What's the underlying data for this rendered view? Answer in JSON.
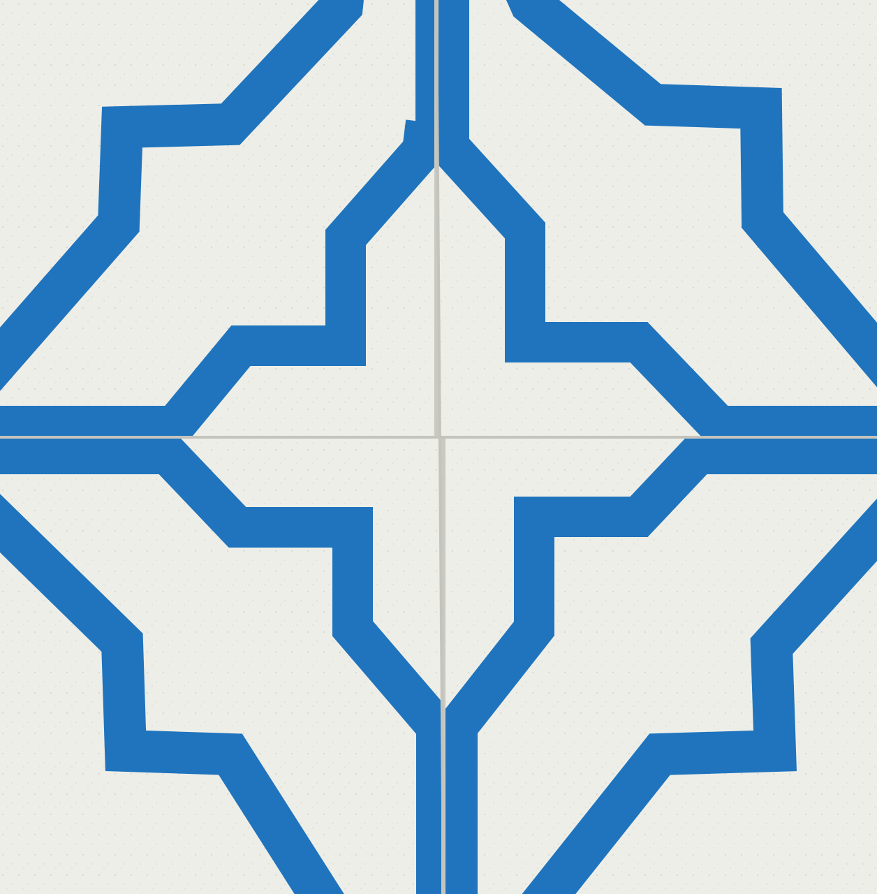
{
  "photo": {
    "subject": "",
    "colors": {
      "tile_face": "#eeeee8",
      "pattern": "#1f74bd",
      "grout": "#c9c9c2",
      "background": "#dcdcd6"
    }
  }
}
